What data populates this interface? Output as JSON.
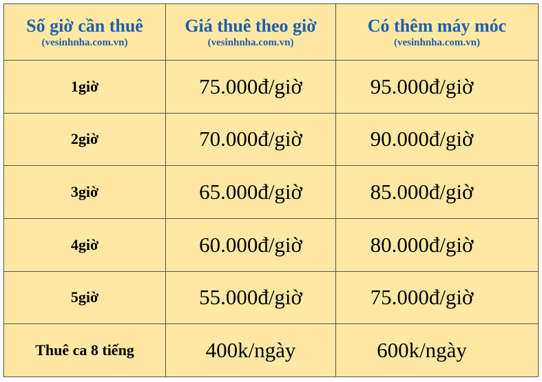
{
  "table": {
    "header": [
      {
        "title": "Số giờ cần thuê",
        "subtitle": "(vesinhnha.com.vn)"
      },
      {
        "title": "Giá thuê theo giờ",
        "subtitle": "(vesinhnha.com.vn)"
      },
      {
        "title": "Có thêm máy móc",
        "subtitle": "(vesinhnha.com.vn)"
      }
    ],
    "rows": [
      [
        "1giờ",
        "75.000đ/giờ",
        "95.000đ/giờ"
      ],
      [
        "2giờ",
        "70.000đ/giờ",
        "90.000đ/giờ"
      ],
      [
        "3giờ",
        "65.000đ/giờ",
        "85.000đ/giờ"
      ],
      [
        "4giờ",
        "60.000đ/giờ",
        "80.000đ/giờ"
      ],
      [
        "5giờ",
        "55.000đ/giờ",
        "75.000đ/giờ"
      ],
      [
        "Thuê ca 8 tiếng",
        "400k/ngày",
        "600k/ngày"
      ]
    ]
  }
}
